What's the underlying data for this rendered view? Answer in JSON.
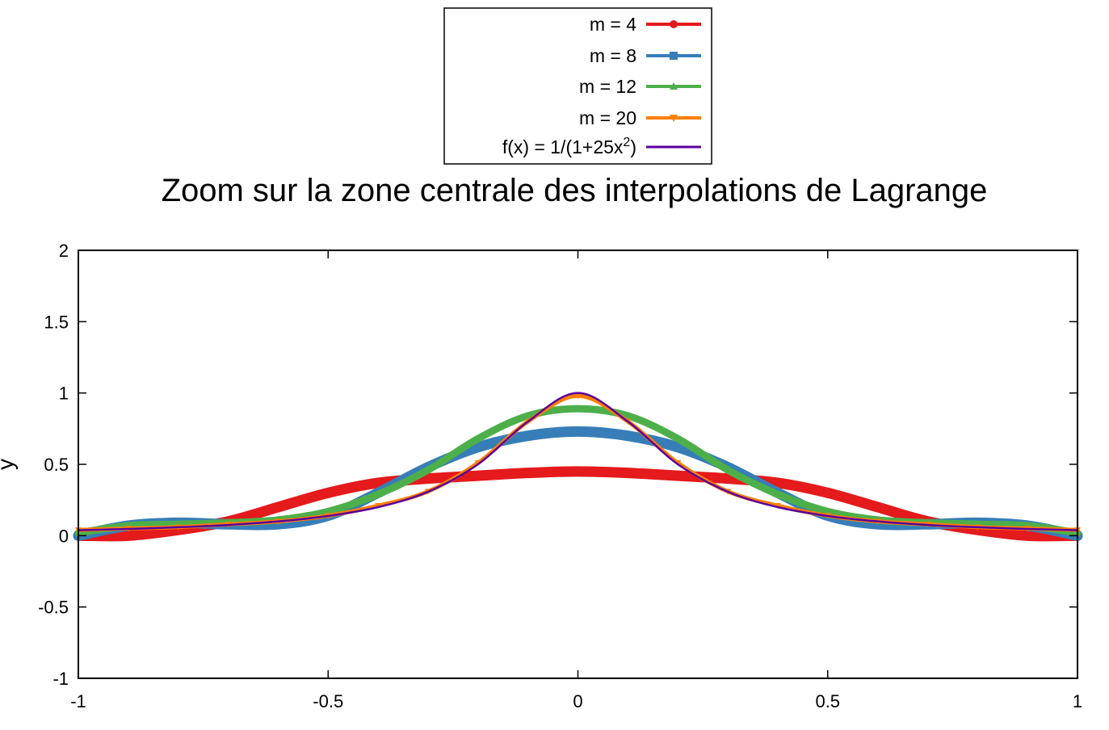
{
  "chart_data": {
    "type": "line",
    "title": "Zoom sur la zone centrale des interpolations de Lagrange",
    "xlabel": "",
    "ylabel": "y",
    "xlim": [
      -1,
      1
    ],
    "ylim": [
      -1,
      2
    ],
    "x_ticks": [
      "-1",
      "-0.5",
      "0",
      "0.5",
      "1"
    ],
    "y_ticks": [
      "2",
      "1.5",
      "1",
      "0.5",
      "0",
      "-0.5",
      "-1"
    ],
    "grid": false,
    "legend_position": "top-center",
    "x": [
      -1.0,
      -0.9,
      -0.8,
      -0.7,
      -0.6,
      -0.5,
      -0.4,
      -0.3,
      -0.2,
      -0.1,
      0.0,
      0.1,
      0.2,
      0.3,
      0.4,
      0.5,
      0.6,
      0.7,
      0.8,
      0.9,
      1.0
    ],
    "series": [
      {
        "name": "m = 4",
        "color": "#e41a1c",
        "marker": "circle",
        "values": [
          0.0,
          0.0,
          0.04,
          0.1,
          0.2,
          0.3,
          0.37,
          0.4,
          0.42,
          0.44,
          0.45,
          0.44,
          0.42,
          0.4,
          0.37,
          0.3,
          0.2,
          0.1,
          0.04,
          0.0,
          0.0
        ]
      },
      {
        "name": "m = 8",
        "color": "#377eb8",
        "marker": "square",
        "values": [
          0.0,
          0.07,
          0.09,
          0.08,
          0.08,
          0.14,
          0.3,
          0.48,
          0.62,
          0.7,
          0.73,
          0.7,
          0.62,
          0.48,
          0.3,
          0.14,
          0.08,
          0.08,
          0.09,
          0.07,
          0.0
        ]
      },
      {
        "name": "m = 12",
        "color": "#4daf4a",
        "marker": "triangle-up",
        "values": [
          0.02,
          0.07,
          0.08,
          0.09,
          0.11,
          0.17,
          0.29,
          0.46,
          0.68,
          0.84,
          0.89,
          0.84,
          0.68,
          0.46,
          0.29,
          0.17,
          0.11,
          0.09,
          0.08,
          0.07,
          0.02
        ]
      },
      {
        "name": "m = 20",
        "color": "#ff7f00",
        "marker": "triangle-down",
        "values": [
          0.04,
          0.05,
          0.06,
          0.08,
          0.1,
          0.14,
          0.21,
          0.31,
          0.51,
          0.8,
          0.98,
          0.8,
          0.51,
          0.31,
          0.21,
          0.14,
          0.1,
          0.08,
          0.06,
          0.05,
          0.04
        ]
      },
      {
        "name": "f(x) = 1/(1+25x",
        "name_sup": "2",
        "name_tail": ")",
        "color": "#5b00a0",
        "marker": "none",
        "values": [
          0.038,
          0.047,
          0.059,
          0.075,
          0.1,
          0.138,
          0.2,
          0.308,
          0.5,
          0.8,
          1.0,
          0.8,
          0.5,
          0.308,
          0.2,
          0.138,
          0.1,
          0.075,
          0.059,
          0.047,
          0.038
        ]
      }
    ]
  }
}
